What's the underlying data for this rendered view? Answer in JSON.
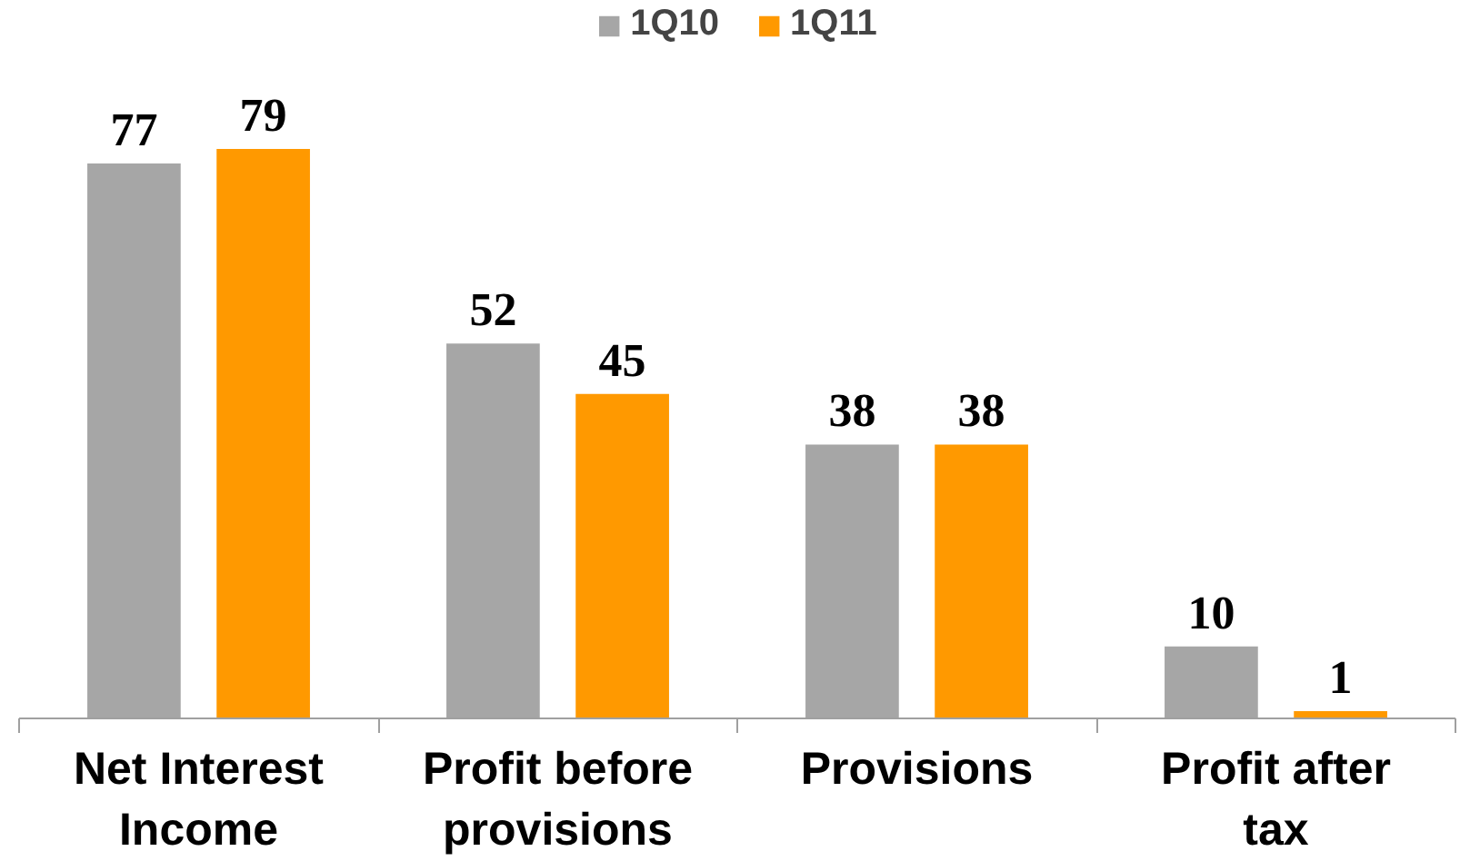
{
  "chart_data": {
    "type": "bar",
    "categories": [
      "Net Interest Income",
      "Profit before provisions",
      "Provisions",
      "Profit after tax"
    ],
    "series": [
      {
        "name": "1Q10",
        "color": "#a6a6a6",
        "values": [
          77,
          52,
          38,
          10
        ]
      },
      {
        "name": "1Q11",
        "color": "#ff9900",
        "values": [
          79,
          45,
          38,
          1
        ]
      }
    ],
    "data_labels": true,
    "legend": "top",
    "grid": false
  }
}
